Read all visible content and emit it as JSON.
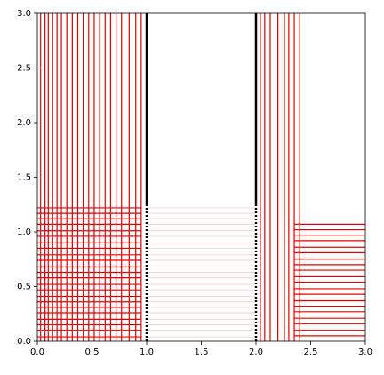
{
  "chart_data": {
    "type": "mesh",
    "xlim": [
      0,
      3
    ],
    "ylim": [
      0,
      3
    ],
    "xticks": [
      {
        "value": 0,
        "label": "0.0"
      },
      0.5,
      {
        "value": 1,
        "label": "1.0"
      },
      1.5,
      {
        "value": 2,
        "label": "2.0"
      },
      2.5,
      {
        "value": 3,
        "label": "3.0"
      }
    ],
    "yticks": [
      {
        "value": 0,
        "label": "0.0"
      },
      0.5,
      {
        "value": 1,
        "label": "1.0"
      },
      1.5,
      {
        "value": 2,
        "label": "2.0"
      },
      2.5,
      {
        "value": 3,
        "label": "3.0"
      }
    ],
    "grid": false,
    "groups": [
      {
        "orientation": "horizontal",
        "color": "#fbd8d8",
        "width": 1.2,
        "style": "solid",
        "span": [
          1,
          2
        ],
        "positions": [
          0.04,
          0.1,
          0.15,
          0.2,
          0.26,
          0.31,
          0.36,
          0.41,
          0.47,
          0.52,
          0.58,
          0.63,
          0.68,
          0.74,
          0.79,
          0.85,
          0.9,
          0.96,
          1.01,
          1.07,
          1.12,
          1.17,
          1.22
        ]
      },
      {
        "orientation": "vertical",
        "color": "#e00000",
        "width": 1.2,
        "style": "solid",
        "span": [
          0,
          3
        ],
        "positions": [
          0.03,
          0.07,
          0.1,
          0.14,
          0.18,
          0.22,
          0.27,
          0.32,
          0.37,
          0.42,
          0.47,
          0.52,
          0.57,
          0.62,
          0.67,
          0.72,
          0.77,
          0.84,
          0.9,
          0.95
        ]
      },
      {
        "orientation": "horizontal",
        "color": "#e00000",
        "width": 1.2,
        "style": "solid",
        "span": [
          0,
          0.95
        ],
        "positions": [
          0.04,
          0.1,
          0.15,
          0.2,
          0.26,
          0.31,
          0.36,
          0.41,
          0.47,
          0.52,
          0.58,
          0.63,
          0.68,
          0.74,
          0.79,
          0.85,
          0.9,
          0.96,
          1.01,
          1.07,
          1.12,
          1.17,
          1.22
        ]
      },
      {
        "orientation": "vertical",
        "color": "#e00000",
        "width": 1.2,
        "style": "solid",
        "span": [
          0,
          3
        ],
        "positions": [
          2.04,
          2.08,
          2.13,
          2.2,
          2.26,
          2.3,
          2.35,
          2.4
        ]
      },
      {
        "orientation": "horizontal",
        "color": "#e00000",
        "width": 1.2,
        "style": "solid",
        "span": [
          2.35,
          3
        ],
        "positions": [
          0.05,
          0.1,
          0.16,
          0.21,
          0.27,
          0.32,
          0.37,
          0.43,
          0.48,
          0.54,
          0.59,
          0.65,
          0.7,
          0.75,
          0.81,
          0.86,
          0.92,
          0.97,
          1.02,
          1.07
        ]
      },
      {
        "orientation": "vertical",
        "color": "#000000",
        "width": 2.5,
        "style": "solid",
        "span": [
          1.25,
          3
        ],
        "positions": [
          1,
          2
        ]
      },
      {
        "orientation": "vertical",
        "color": "#000000",
        "width": 2.5,
        "style": "dotted",
        "span": [
          0,
          1.25
        ],
        "positions": [
          1,
          2
        ]
      }
    ]
  }
}
